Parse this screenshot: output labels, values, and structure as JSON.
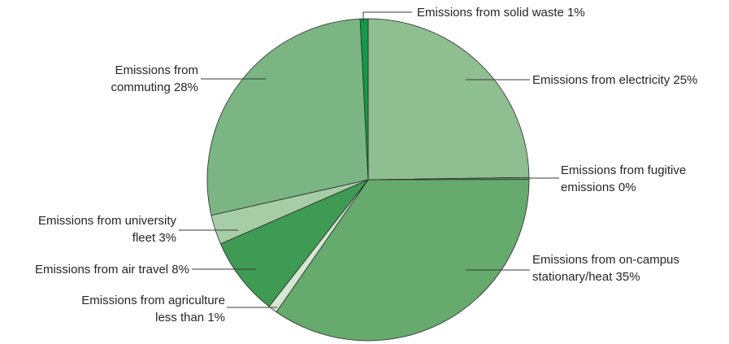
{
  "chart_data": {
    "type": "pie",
    "title": "",
    "slices": [
      {
        "key": "electricity",
        "label_lines": [
          "Emissions from electricity 25%"
        ],
        "value": 25,
        "color": "#8fbe91"
      },
      {
        "key": "fugitive",
        "label_lines": [
          "Emissions from fugitive",
          "emissions 0%"
        ],
        "value": 0.2,
        "color": "#5fa565"
      },
      {
        "key": "stationary",
        "label_lines": [
          "Emissions from on-campus",
          "stationary/heat 35%"
        ],
        "value": 35,
        "color": "#66aa6e"
      },
      {
        "key": "agriculture",
        "label_lines": [
          "Emissions from agriculture",
          "less than 1%"
        ],
        "value": 0.9,
        "color": "#d3e7d1"
      },
      {
        "key": "air-travel",
        "label_lines": [
          "Emissions from air travel 8%"
        ],
        "value": 8,
        "color": "#3f9a54"
      },
      {
        "key": "fleet",
        "label_lines": [
          "Emissions from university",
          "fleet 3%"
        ],
        "value": 3,
        "color": "#a6cda6"
      },
      {
        "key": "commuting",
        "label_lines": [
          "Emissions from",
          "commuting 28%"
        ],
        "value": 28,
        "color": "#7ab583"
      },
      {
        "key": "solid-waste",
        "label_lines": [
          "Emissions from solid waste 1%"
        ],
        "value": 0.8,
        "color": "#139a48"
      }
    ]
  }
}
